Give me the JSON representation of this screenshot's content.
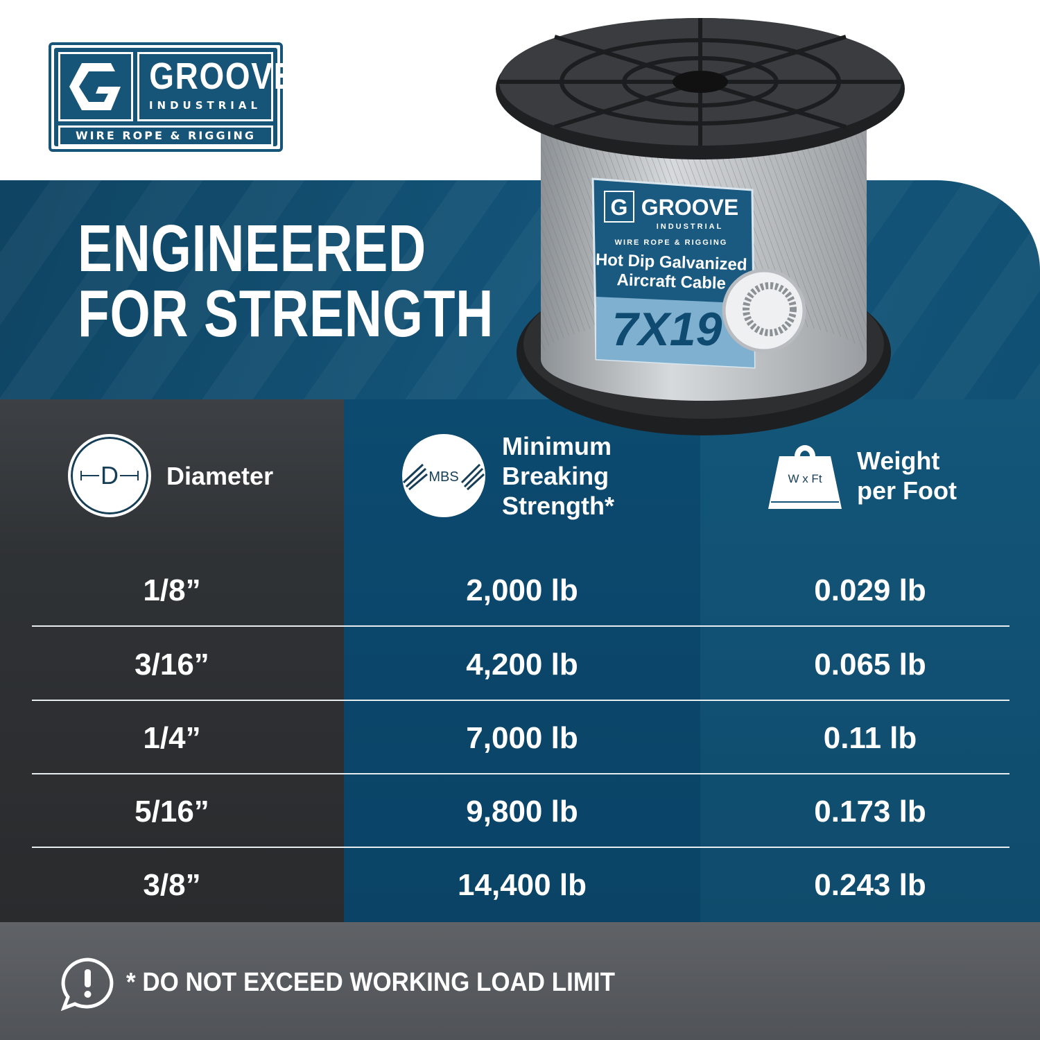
{
  "brand": {
    "name": "GROOVE",
    "sub": "INDUSTRIAL",
    "tagline": "WIRE ROPE & RIGGING"
  },
  "headline": {
    "line1": "ENGINEERED",
    "line2": "FOR STRENGTH"
  },
  "product_label": {
    "brand": "GROOVE",
    "sub": "INDUSTRIAL",
    "tagline": "WIRE ROPE & RIGGING",
    "line1": "Hot Dip Galvanized",
    "line2": "Aircraft Cable",
    "construction": "7X19"
  },
  "table": {
    "headers": [
      {
        "icon": "diameter-icon",
        "icon_text": "D",
        "label": "Diameter"
      },
      {
        "icon": "mbs-icon",
        "icon_text": "MBS",
        "label_lines": [
          "Minimum",
          "Breaking",
          "Strength*"
        ]
      },
      {
        "icon": "weight-icon",
        "icon_text": "W x Ft",
        "label_lines": [
          "Weight",
          "per Foot"
        ]
      }
    ],
    "rows": [
      {
        "diameter": "1/8”",
        "mbs": "2,000 lb",
        "weight": "0.029 lb"
      },
      {
        "diameter": "3/16”",
        "mbs": "4,200 lb",
        "weight": "0.065 lb"
      },
      {
        "diameter": "1/4”",
        "mbs": "7,000 lb",
        "weight": "0.11 lb"
      },
      {
        "diameter": "5/16”",
        "mbs": "9,800 lb",
        "weight": "0.173 lb"
      },
      {
        "diameter": "3/8”",
        "mbs": "14,400 lb",
        "weight": "0.243 lb"
      }
    ]
  },
  "footer": {
    "icon": "alert-speech-icon",
    "warning": "* DO NOT EXCEED WORKING LOAD LIMIT"
  },
  "colors": {
    "brand_blue": "#165478",
    "dark": "#2f3235",
    "mid_blue": "#0c4a6f",
    "light_blue": "#135679",
    "footer": "#5a5d61"
  }
}
